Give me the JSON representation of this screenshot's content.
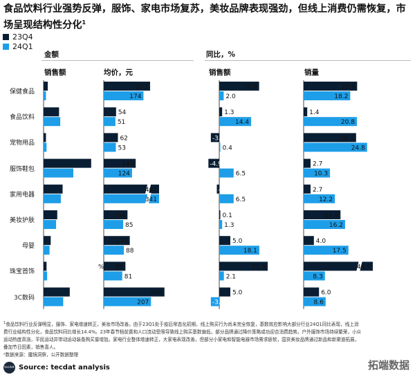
{
  "title": "食品饮料行业强势反弹，服饰、家电市场复苏，美妆品牌表现强劲，但线上消费仍需恢复，市场呈现结构性分化",
  "title_sup": "1",
  "legend": [
    {
      "label": "23Q4",
      "color": "#0a1e33"
    },
    {
      "label": "24Q1",
      "color": "#1e9ee8"
    }
  ],
  "headings": {
    "amount": "金额",
    "yoy": "同比，%",
    "sales": "销售额",
    "avg_price": "均价，元",
    "yoy_sales": "销售额",
    "volume": "销量"
  },
  "chart_data": {
    "type": "bar",
    "orientation": "horizontal",
    "categories": [
      "保健食品",
      "食品饮料",
      "宠物用品",
      "服饰鞋包",
      "家用电器",
      "美妆护肤",
      "母婴",
      "珠宝首饰",
      "3C数码"
    ],
    "panels": [
      {
        "name": "销售额",
        "group": "金额",
        "data_labels": false,
        "series": [
          {
            "name": "23Q4",
            "values": [
              0.7,
              2.6,
              0.4,
              8.0,
              3.2,
              2.3,
              1.2,
              0.5,
              4.4
            ]
          },
          {
            "name": "24Q1",
            "values": [
              0.4,
              2.8,
              0.5,
              5.0,
              2.9,
              2.1,
              1.0,
              0.6,
              3.3
            ]
          }
        ]
      },
      {
        "name": "均价，元",
        "group": "金额",
        "data_labels": true,
        "series": [
          {
            "name": "23Q4",
            "values": [
              203,
              54,
              62,
              140,
              460,
              104,
              114,
              95,
              266
            ]
          },
          {
            "name": "24Q1",
            "values": [
              174,
              51,
              53,
              124,
              341,
              85,
              88,
              81,
              207
            ]
          }
        ],
        "broken_axis": [
          "家用电器"
        ],
        "note": {
          "category": "珠宝首饰",
          "text": "%"
        }
      },
      {
        "name": "销售额",
        "group": "同比，%",
        "data_labels": true,
        "series": [
          {
            "name": "23Q4",
            "values": [
              18.0,
              1.3,
              -3.8,
              -4.9,
              -1.1,
              0.1,
              5.0,
              21.9,
              5.0
            ]
          },
          {
            "name": "24Q1",
            "values": [
              2.0,
              14.4,
              0.4,
              6.5,
              6.5,
              1.3,
              18.1,
              2.1,
              -3.8
            ]
          }
        ]
      },
      {
        "name": "销量",
        "group": "同比，%",
        "data_labels": true,
        "series": [
          {
            "name": "23Q4",
            "values": [
              20.9,
              1.4,
              20.5,
              2.7,
              2.7,
              14.4,
              4.0,
              49.9,
              6.0
            ]
          },
          {
            "name": "24Q1",
            "values": [
              18.2,
              20.8,
              24.8,
              10.3,
              12.2,
              16.2,
              17.5,
              8.3,
              8.6
            ]
          }
        ],
        "broken_axis": [
          "珠宝首饰"
        ]
      }
    ]
  },
  "footnote": "食品饮料行业反弹明显，服饰、家电增速转正，美妆市场改善。由于23Q1处于疫后常态化初期，线上购买行为尚未完全恢复，基数效应影响大部分行业24Q1同比表现，线上消费行业结构性分化，食品饮料同比增长14.4%。23年春节档前置和人口流动受限导致线上购买基数偏低，部分品牌通过降价策略成功迎合消费趋势。户外服饰市场持续繁荣，小众运动热度高涨，平民运动并带动运动装备购买量增加。家电行业整体增速转正，大家电表现改善，但部分小家电和智能电器市场需求疲软，国货美妆品牌通过新品和新渠道拓展，叠加节日因素，销售喜人。",
  "footnote_sup": "1",
  "data_source": "²数据来源：魔镜洞察，公开数据整理",
  "source": "Source: tecdat analysis",
  "logo_text": "tecdat",
  "watermark": "拓端数据"
}
